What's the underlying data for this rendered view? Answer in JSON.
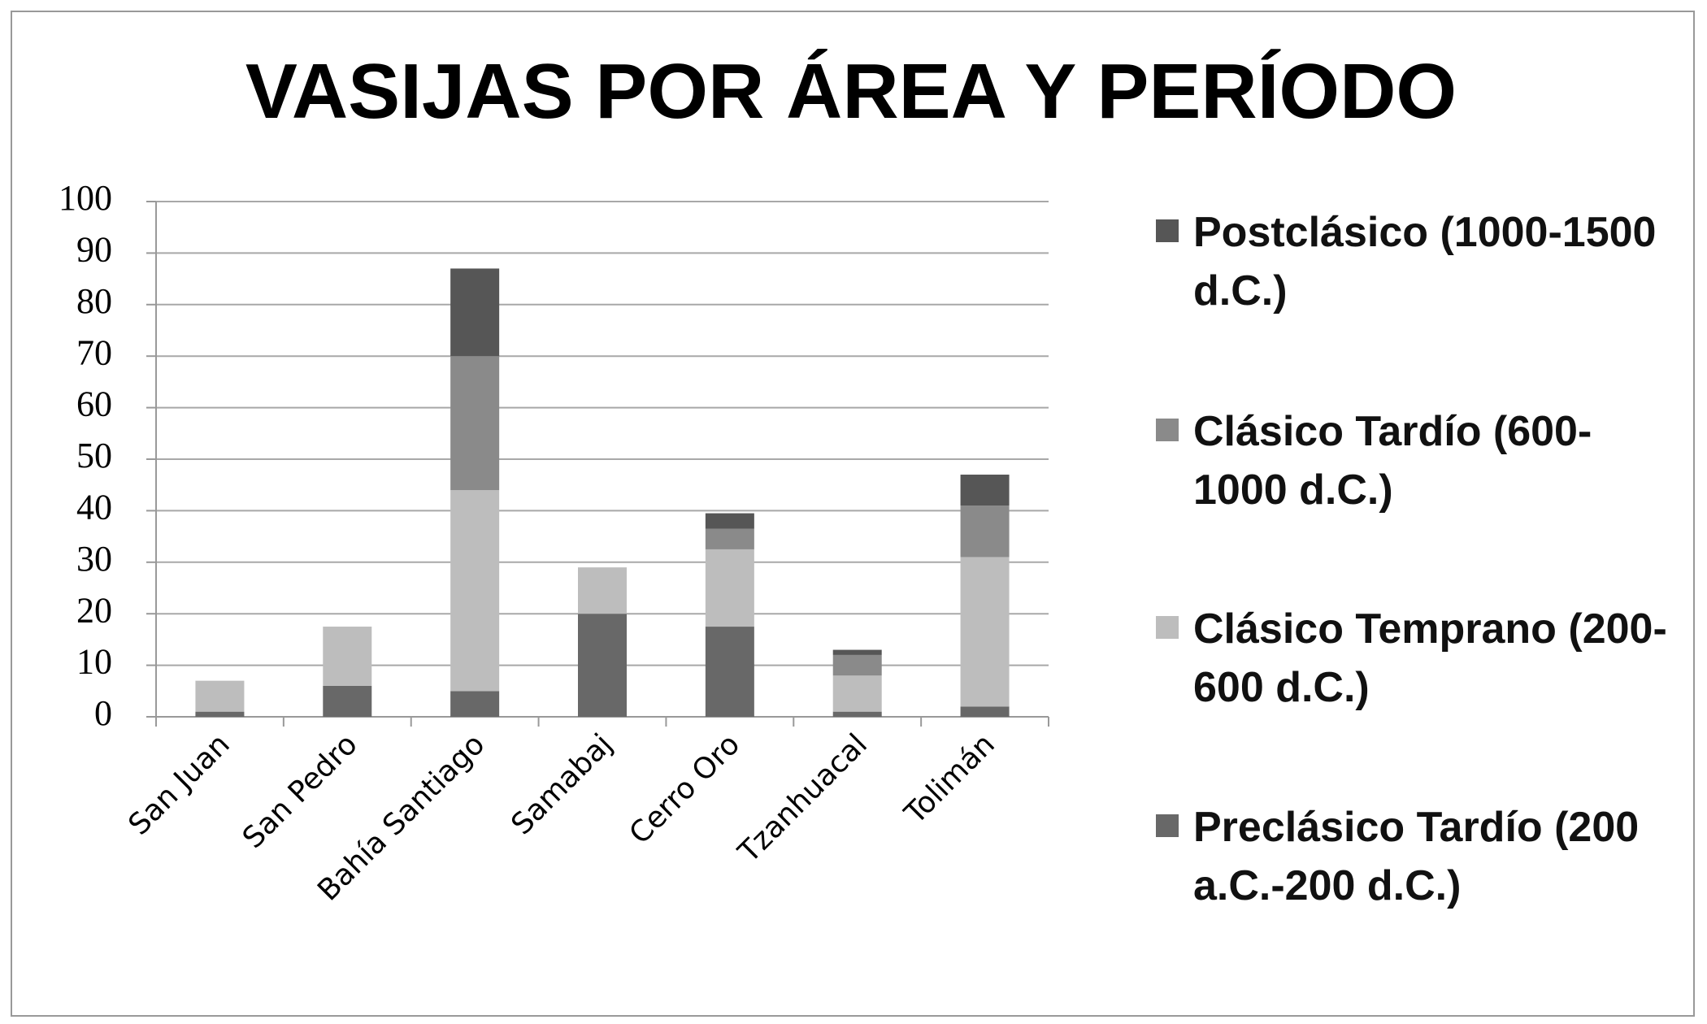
{
  "chart_data": {
    "type": "stacked_bar",
    "title": "VASIJAS POR ÁREA Y PERÍODO",
    "categories": [
      "San Juan",
      "San Pedro",
      "Bahía Santiago",
      "Samabaj",
      "Cerro Oro",
      "Tzanhuacal",
      "Tolimán"
    ],
    "series": [
      {
        "name": "Postclásico (1000-1500 d.C.)",
        "color": "#565656",
        "values": [
          0,
          0,
          17,
          0,
          3,
          1,
          6
        ]
      },
      {
        "name": "Clásico Tardío (600-1000 d.C.)",
        "color": "#8a8a8a",
        "values": [
          0,
          0,
          26,
          0,
          4,
          4,
          10
        ]
      },
      {
        "name": "Clásico Temprano (200-600 d.C.)",
        "color": "#bdbdbd",
        "values": [
          6,
          11.5,
          39,
          9,
          15,
          7,
          29
        ]
      },
      {
        "name": "Preclásico Tardío (200 a.C.-200 d.C.)",
        "color": "#686868",
        "values": [
          1,
          6,
          5,
          20,
          17.5,
          1,
          2
        ]
      }
    ],
    "ylim": [
      0,
      100
    ],
    "yticks": [
      0,
      10,
      20,
      30,
      40,
      50,
      60,
      70,
      80,
      90,
      100
    ],
    "grid": true,
    "legend": "right"
  }
}
